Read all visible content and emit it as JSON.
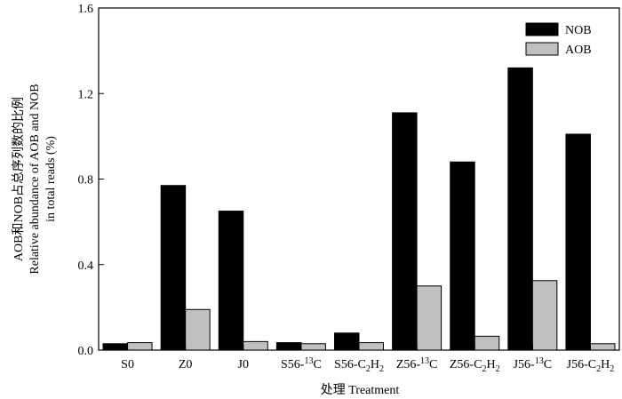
{
  "chart_data": {
    "type": "bar",
    "title": "",
    "xlabel": "处理 Treatment",
    "ylabel_lines": [
      "AOB和NOB占总序列数的比例",
      "Relative abundance of AOB and NOB",
      "in total reads (%)"
    ],
    "ylim": [
      0,
      1.6
    ],
    "yticks": [
      "0.0",
      "0.4",
      "0.8",
      "1.2",
      "1.6"
    ],
    "ytick_values": [
      0,
      0.4,
      0.8,
      1.2,
      1.6
    ],
    "categories": [
      "S0",
      "Z0",
      "J0",
      "S56-13C",
      "S56-C2H2",
      "Z56-13C",
      "Z56-C2H2",
      "J56-13C",
      "J56-C2H2"
    ],
    "series": [
      {
        "name": "NOB",
        "color": "#000000",
        "values": [
          0.03,
          0.77,
          0.65,
          0.035,
          0.08,
          1.11,
          0.88,
          1.32,
          1.01
        ]
      },
      {
        "name": "AOB",
        "color": "#c0c0c0",
        "values": [
          0.035,
          0.19,
          0.04,
          0.03,
          0.035,
          0.3,
          0.065,
          0.325,
          0.03
        ]
      }
    ],
    "legend": "top-right",
    "grid": false
  }
}
